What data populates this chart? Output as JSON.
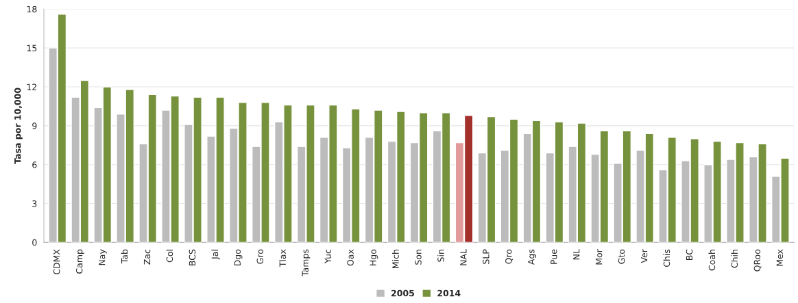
{
  "chart_data": {
    "type": "bar",
    "ylabel": "Tasa por 10,000",
    "categories": [
      "CDMX",
      "Camp",
      "Nay",
      "Tab",
      "Zac",
      "Col",
      "BCS",
      "Jal",
      "Dgo",
      "Gro",
      "Tlax",
      "Tamps",
      "Yuc",
      "Oax",
      "Hgo",
      "Mich",
      "Son",
      "Sin",
      "NAL",
      "SLP",
      "Qro",
      "Ags",
      "Pue",
      "NL",
      "Mor",
      "Gto",
      "Ver",
      "Chis",
      "BC",
      "Coah",
      "Chih",
      "QRoo",
      "Mex"
    ],
    "series": [
      {
        "name": "2005",
        "color": "#bcbcbc",
        "colors": [
          "#bcbcbc",
          "#bcbcbc",
          "#bcbcbc",
          "#bcbcbc",
          "#bcbcbc",
          "#bcbcbc",
          "#bcbcbc",
          "#bcbcbc",
          "#bcbcbc",
          "#bcbcbc",
          "#bcbcbc",
          "#bcbcbc",
          "#bcbcbc",
          "#bcbcbc",
          "#bcbcbc",
          "#bcbcbc",
          "#bcbcbc",
          "#bcbcbc",
          "#e39a9a",
          "#bcbcbc",
          "#bcbcbc",
          "#bcbcbc",
          "#bcbcbc",
          "#bcbcbc",
          "#bcbcbc",
          "#bcbcbc",
          "#bcbcbc",
          "#bcbcbc",
          "#bcbcbc",
          "#bcbcbc",
          "#bcbcbc",
          "#bcbcbc",
          "#bcbcbc"
        ],
        "values": [
          15.0,
          11.2,
          10.4,
          9.9,
          7.6,
          10.2,
          9.1,
          8.2,
          8.8,
          7.4,
          9.3,
          7.4,
          8.1,
          7.3,
          8.1,
          7.8,
          7.7,
          8.6,
          7.7,
          6.9,
          7.1,
          8.4,
          6.9,
          7.4,
          6.8,
          6.1,
          7.1,
          5.6,
          6.3,
          6.0,
          6.4,
          6.6,
          5.1
        ]
      },
      {
        "name": "2014",
        "color": "#76923c",
        "colors": [
          "#76923c",
          "#76923c",
          "#76923c",
          "#76923c",
          "#76923c",
          "#76923c",
          "#76923c",
          "#76923c",
          "#76923c",
          "#76923c",
          "#76923c",
          "#76923c",
          "#76923c",
          "#76923c",
          "#76923c",
          "#76923c",
          "#76923c",
          "#76923c",
          "#a3302b",
          "#76923c",
          "#76923c",
          "#76923c",
          "#76923c",
          "#76923c",
          "#76923c",
          "#76923c",
          "#76923c",
          "#76923c",
          "#76923c",
          "#76923c",
          "#76923c",
          "#76923c",
          "#76923c"
        ],
        "values": [
          17.6,
          12.5,
          12.0,
          11.8,
          11.4,
          11.3,
          11.2,
          11.2,
          10.8,
          10.8,
          10.6,
          10.6,
          10.6,
          10.3,
          10.2,
          10.1,
          10.0,
          10.0,
          9.8,
          9.7,
          9.5,
          9.4,
          9.3,
          9.2,
          8.6,
          8.6,
          8.4,
          8.1,
          8.0,
          7.8,
          7.7,
          7.6,
          6.5
        ]
      }
    ],
    "ylim": [
      0,
      18
    ],
    "yticks": [
      0,
      3,
      6,
      9,
      12,
      15,
      18
    ],
    "grid": "y",
    "legend": "bottom"
  }
}
